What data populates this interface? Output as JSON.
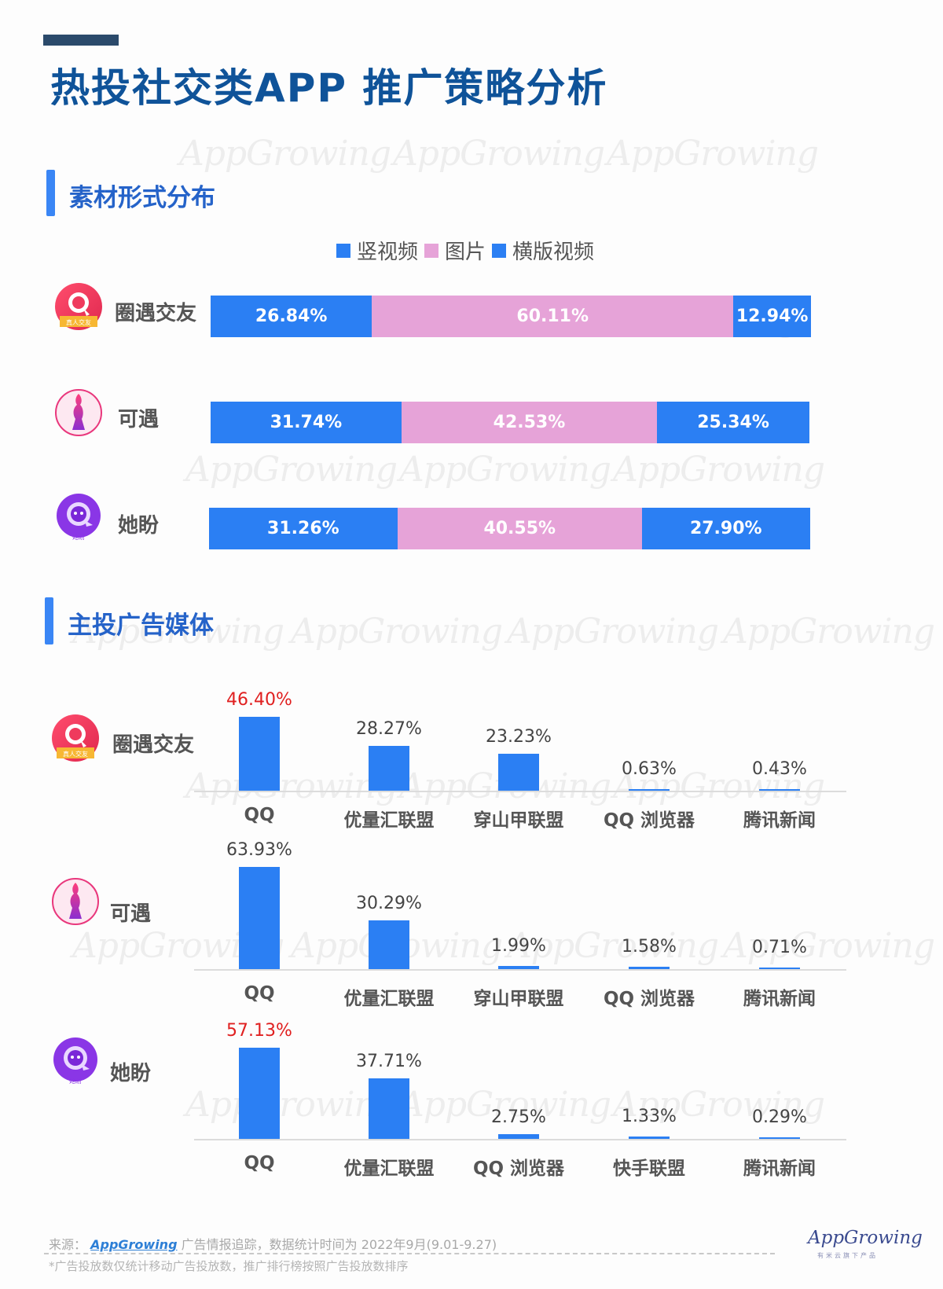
{
  "page": {
    "title": "热投社交类APP 推广策略分析",
    "watermark": "AppGrowing"
  },
  "section1": {
    "title": "素材形式分布",
    "legend": [
      {
        "label": "竖视频",
        "color": "#2b7ff3"
      },
      {
        "label": "图片",
        "color": "#e6a3d8"
      },
      {
        "label": "横版视频",
        "color": "#2b7ff3"
      }
    ],
    "rows": [
      {
        "app": "圈遇交友",
        "values": [
          "26.84%",
          "60.11%",
          "12.94%"
        ]
      },
      {
        "app": "可遇",
        "values": [
          "31.74%",
          "42.53%",
          "25.34%"
        ]
      },
      {
        "app": "她盼",
        "values": [
          "31.26%",
          "40.55%",
          "27.90%"
        ]
      }
    ]
  },
  "section2": {
    "title": "主投广告媒体",
    "charts": [
      {
        "app": "圈遇交友",
        "categories": [
          "QQ",
          "优量汇联盟",
          "穿山甲联盟",
          "QQ 浏览器",
          "腾讯新闻"
        ],
        "labels": [
          "46.40%",
          "28.27%",
          "23.23%",
          "0.63%",
          "0.43%"
        ],
        "highlight": 0
      },
      {
        "app": "可遇",
        "categories": [
          "QQ",
          "优量汇联盟",
          "穿山甲联盟",
          "QQ 浏览器",
          "腾讯新闻"
        ],
        "labels": [
          "63.93%",
          "30.29%",
          "1.99%",
          "1.58%",
          "0.71%"
        ],
        "highlight": -1
      },
      {
        "app": "她盼",
        "categories": [
          "QQ",
          "优量汇联盟",
          "QQ 浏览器",
          "快手联盟",
          "腾讯新闻"
        ],
        "labels": [
          "57.13%",
          "37.71%",
          "2.75%",
          "1.33%",
          "0.29%"
        ],
        "highlight": 0
      }
    ]
  },
  "footer": {
    "source_prefix": "来源：",
    "source_brand": "AppGrowing",
    "source_suffix": "广告情报追踪，数据统计时间为 2022年9月(9.01-9.27)",
    "note": "*广告投放数仅统计移动广告投放数，推广排行榜按照广告投放数排序",
    "logo": "AppGrowing",
    "logo_sub": "有米云旗下产品"
  },
  "chart_data": [
    {
      "type": "bar",
      "title": "素材形式分布",
      "stacked": true,
      "orientation": "horizontal",
      "categories": [
        "圈遇交友",
        "可遇",
        "她盼"
      ],
      "series": [
        {
          "name": "竖视频",
          "values": [
            26.84,
            31.74,
            31.26
          ]
        },
        {
          "name": "图片",
          "values": [
            60.11,
            42.53,
            40.55
          ]
        },
        {
          "name": "横版视频",
          "values": [
            12.94,
            25.34,
            27.9
          ]
        }
      ],
      "unit": "%",
      "legend_position": "top"
    },
    {
      "type": "bar",
      "title": "主投广告媒体 - 圈遇交友",
      "categories": [
        "QQ",
        "优量汇联盟",
        "穿山甲联盟",
        "QQ 浏览器",
        "腾讯新闻"
      ],
      "values": [
        46.4,
        28.27,
        23.23,
        0.63,
        0.43
      ],
      "unit": "%"
    },
    {
      "type": "bar",
      "title": "主投广告媒体 - 可遇",
      "categories": [
        "QQ",
        "优量汇联盟",
        "穿山甲联盟",
        "QQ 浏览器",
        "腾讯新闻"
      ],
      "values": [
        63.93,
        30.29,
        1.99,
        1.58,
        0.71
      ],
      "unit": "%"
    },
    {
      "type": "bar",
      "title": "主投广告媒体 - 她盼",
      "categories": [
        "QQ",
        "优量汇联盟",
        "QQ 浏览器",
        "快手联盟",
        "腾讯新闻"
      ],
      "values": [
        57.13,
        37.71,
        2.75,
        1.33,
        0.29
      ],
      "unit": "%"
    }
  ]
}
